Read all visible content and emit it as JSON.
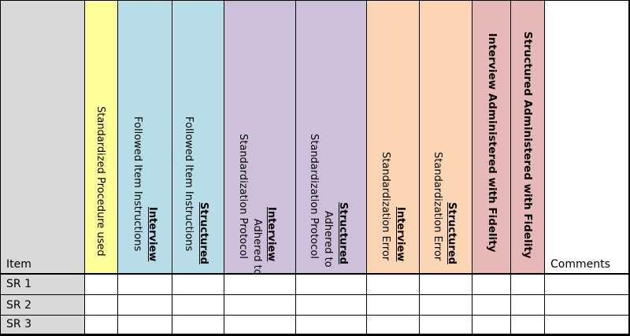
{
  "colors": {
    "item_col": "#d9d9d9",
    "procedure": "#ffff99",
    "instructions": "#b7dde8",
    "protocol": "#ccc0da",
    "error": "#fcd5b4",
    "fidelity": "#e6b9b8",
    "comments": "#ffffff"
  },
  "header": {
    "item": "Item",
    "comments": "Comments",
    "columns": [
      {
        "bold": "",
        "text": "Standardized Procedure used"
      },
      {
        "bold": "Interview",
        "text": "Followed Item Instructions"
      },
      {
        "bold": "Structured",
        "text": "Followed Item Instructions"
      },
      {
        "bold": "Interview",
        "text1": "Adhered to",
        "text2": "Standardization Protocol"
      },
      {
        "bold": "Structured",
        "text1": "Adhered to",
        "text2": "Standardization Protocol"
      },
      {
        "bold": "Interview",
        "text": "Standardization Error"
      },
      {
        "bold": "Structured",
        "text": "Standardization Error"
      },
      {
        "text": "Interview Administered with Fidelity"
      },
      {
        "text": "Structured Administered with Fidelity"
      }
    ]
  },
  "rows": [
    "SR 1",
    "SR 2",
    "SR 3"
  ]
}
